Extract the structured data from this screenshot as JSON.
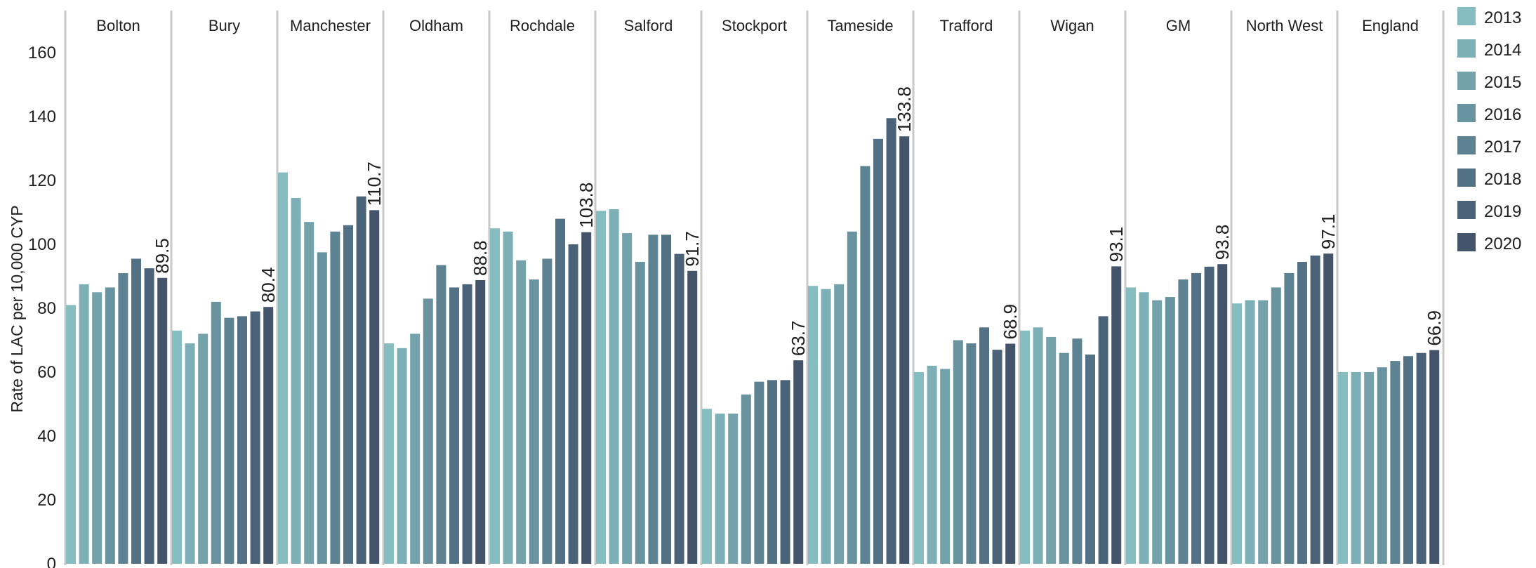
{
  "chart_data": {
    "type": "bar",
    "title": "",
    "xlabel": "",
    "ylabel": "Rate of LAC per 10,000 CYP",
    "ylim": [
      0,
      160
    ],
    "yticks": [
      0,
      20,
      40,
      60,
      80,
      100,
      120,
      140,
      160
    ],
    "grid": false,
    "legend_position": "right",
    "categories": [
      "Bolton",
      "Bury",
      "Manchester",
      "Oldham",
      "Rochdale",
      "Salford",
      "Stockport",
      "Tameside",
      "Trafford",
      "Wigan",
      "GM",
      "North West",
      "England"
    ],
    "series": [
      {
        "name": "2013",
        "color": "#86BDC1",
        "values": [
          81,
          73,
          122.5,
          69,
          105,
          110.5,
          48.5,
          87,
          60,
          73,
          86.5,
          81.5,
          60
        ]
      },
      {
        "name": "2014",
        "color": "#7DB0B6",
        "values": [
          87.5,
          69,
          114.5,
          67.5,
          104,
          111,
          47,
          86,
          62,
          74,
          85,
          82.5,
          60
        ]
      },
      {
        "name": "2015",
        "color": "#73A2AB",
        "values": [
          85,
          72,
          107,
          72,
          95,
          103.5,
          47,
          87.5,
          61,
          71,
          82.5,
          82.5,
          60
        ]
      },
      {
        "name": "2016",
        "color": "#68939F",
        "values": [
          86.5,
          82,
          97.5,
          83,
          89,
          94.5,
          53,
          104,
          70,
          66,
          83.5,
          86.5,
          61.5
        ]
      },
      {
        "name": "2017",
        "color": "#5D8292",
        "values": [
          91,
          77,
          104,
          93.5,
          95.5,
          103,
          57,
          124.5,
          69,
          70.5,
          89,
          91,
          63.5
        ]
      },
      {
        "name": "2018",
        "color": "#537184",
        "values": [
          95.5,
          77.5,
          106,
          86.5,
          108,
          103,
          57.5,
          133,
          74,
          65.5,
          91,
          94.5,
          65
        ]
      },
      {
        "name": "2019",
        "color": "#4A6277",
        "values": [
          92.5,
          79,
          115,
          87.5,
          100,
          97,
          57.5,
          139.5,
          67,
          77.5,
          93,
          96.5,
          66
        ]
      },
      {
        "name": "2020",
        "color": "#44546A",
        "values": [
          89.5,
          80.4,
          110.7,
          88.8,
          103.8,
          91.7,
          63.7,
          133.8,
          68.9,
          93.1,
          93.8,
          97.1,
          66.9
        ]
      }
    ],
    "data_labels": [
      "89.5",
      "80.4",
      "110.7",
      "88.8",
      "103.8",
      "91.7",
      "63.7",
      "133.8",
      "68.9",
      "93.1",
      "93.8",
      "97.1",
      "66.9"
    ]
  }
}
